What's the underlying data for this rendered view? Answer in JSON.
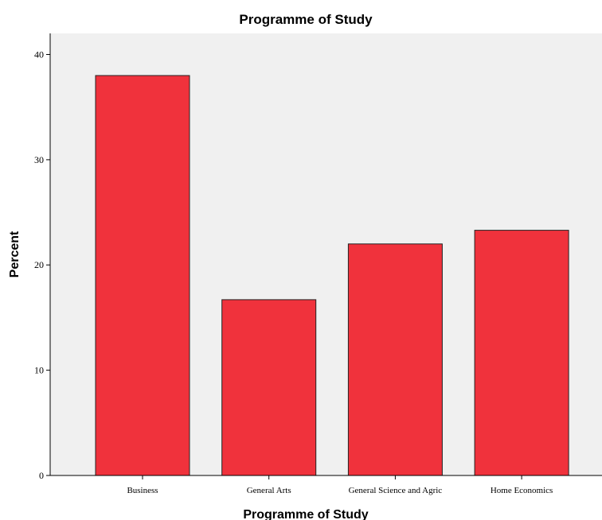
{
  "chart_data": {
    "type": "bar",
    "title": "Programme of Study",
    "xlabel": "Programme of Study",
    "ylabel": "Percent",
    "categories": [
      "Business",
      "General Arts",
      "General Science and Agric",
      "Home Economics"
    ],
    "values": [
      38.0,
      16.7,
      22.0,
      23.3
    ],
    "ylim": [
      0,
      42
    ],
    "yticks": [
      0,
      10,
      20,
      30,
      40
    ],
    "bar_color": "#f0323c",
    "background_color": "#f0f0f0",
    "grid": false,
    "legend": "none"
  }
}
